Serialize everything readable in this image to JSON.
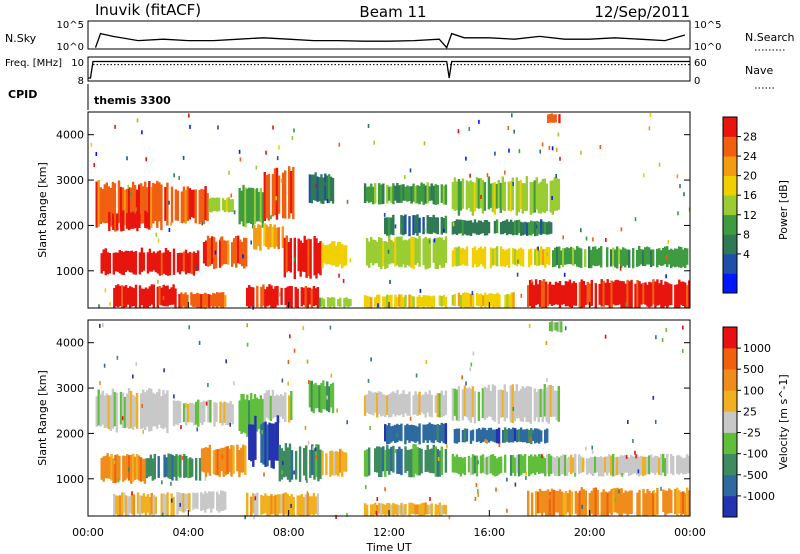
{
  "header": {
    "station": "Inuvik (fitACF)",
    "beam": "Beam 11",
    "date": "12/Sep/2011",
    "cpid_label": "CPID",
    "cpid_value": "themis 3300"
  },
  "colors": {
    "power": [
      "#0018ff",
      "#1f4fa8",
      "#2f7a55",
      "#3f9b3f",
      "#9acd32",
      "#f0d000",
      "#f39c12",
      "#f06010",
      "#e8140e"
    ],
    "velocity": [
      "#2433b0",
      "#2d6aa0",
      "#3e8b60",
      "#5fbf3a",
      "#c8c8c8",
      "#f0b020",
      "#f08c1c",
      "#f0600e",
      "#e81010"
    ],
    "frame": "#000000"
  },
  "chart_data": [
    {
      "type": "line",
      "name": "nsky-nsearch-panel",
      "ylabel_left": "N.Sky",
      "ylabel_right": "N.Search",
      "left_ticks": [
        "10^5",
        "10^0"
      ],
      "right_ticks": [
        "10^5",
        "10^0"
      ],
      "xlim": [
        0,
        24
      ],
      "series": [
        {
          "name": "N.Sky",
          "x": [
            0.3,
            0.5,
            1,
            2,
            3,
            4,
            5,
            6,
            7,
            8,
            9,
            10,
            11,
            12,
            13,
            14,
            14.3,
            14.5,
            15,
            16,
            17,
            18,
            19,
            20,
            21,
            22,
            23,
            23.8
          ],
          "y": [
            0.05,
            0.55,
            0.45,
            0.3,
            0.35,
            0.3,
            0.3,
            0.35,
            0.4,
            0.35,
            0.3,
            0.3,
            0.28,
            0.28,
            0.3,
            0.35,
            0.05,
            0.55,
            0.4,
            0.4,
            0.35,
            0.45,
            0.35,
            0.35,
            0.4,
            0.35,
            0.3,
            0.5
          ]
        }
      ]
    },
    {
      "type": "line",
      "name": "freq-nave-panel",
      "ylabel_left": "Freq. [MHz]",
      "ylabel_right": "Nave",
      "left_ticks": [
        "10",
        "8"
      ],
      "right_ticks": [
        "60",
        "0"
      ],
      "xlim": [
        0,
        24
      ],
      "series": [
        {
          "name": "Freq.",
          "x": [
            0,
            0.1,
            0.2,
            14.3,
            14.4,
            14.5,
            24
          ],
          "y": [
            8,
            8,
            10.2,
            10.2,
            8,
            10.2,
            10.2
          ]
        },
        {
          "name": "Nave",
          "x": [
            0.2,
            14.3,
            14.5,
            24
          ],
          "y": [
            41,
            41,
            41,
            41
          ]
        }
      ]
    },
    {
      "type": "heatmap",
      "name": "power-panel",
      "xlabel": "",
      "ylabel": "Slant Range [km]",
      "colorbar_label": "Power [dB]",
      "colorbar_ticks": [
        "28",
        "24",
        "20",
        "16",
        "12",
        "8",
        "4"
      ],
      "xlim": [
        0,
        24
      ],
      "ylim": [
        180,
        4500
      ],
      "yticks": [
        "1000",
        "2000",
        "3000",
        "4000"
      ],
      "blocks": [
        {
          "t": [
            0.3,
            3.2
          ],
          "r": [
            2000,
            2900
          ],
          "c": 7
        },
        {
          "t": [
            0.8,
            2.4
          ],
          "r": [
            1900,
            2300
          ],
          "c": 8
        },
        {
          "t": [
            3.3,
            4.8
          ],
          "r": [
            2100,
            2800
          ],
          "c": 7
        },
        {
          "t": [
            4.8,
            5.8
          ],
          "r": [
            2300,
            2600
          ],
          "c": 4
        },
        {
          "t": [
            6.0,
            7.0
          ],
          "r": [
            2000,
            2800
          ],
          "c": 3
        },
        {
          "t": [
            7.0,
            8.3
          ],
          "r": [
            2200,
            3200
          ],
          "c": 7
        },
        {
          "t": [
            8.8,
            9.8
          ],
          "r": [
            2500,
            3100
          ],
          "c": 2
        },
        {
          "t": [
            0.5,
            4.5
          ],
          "r": [
            950,
            1450
          ],
          "c": 8
        },
        {
          "t": [
            4.5,
            6.5
          ],
          "r": [
            1100,
            1700
          ],
          "c": 7
        },
        {
          "t": [
            6.5,
            7.8
          ],
          "r": [
            1500,
            2000
          ],
          "c": 6
        },
        {
          "t": [
            7.8,
            9.3
          ],
          "r": [
            900,
            1700
          ],
          "c": 8
        },
        {
          "t": [
            9.3,
            10.4
          ],
          "r": [
            1100,
            1600
          ],
          "c": 5
        },
        {
          "t": [
            1.0,
            3.6
          ],
          "r": [
            200,
            650
          ],
          "c": 8
        },
        {
          "t": [
            3.6,
            5.5
          ],
          "r": [
            200,
            500
          ],
          "c": 7
        },
        {
          "t": [
            6.3,
            9.2
          ],
          "r": [
            200,
            650
          ],
          "c": 8
        },
        {
          "t": [
            9.2,
            10.5
          ],
          "r": [
            200,
            400
          ],
          "c": 4
        },
        {
          "t": [
            11.0,
            14.3
          ],
          "r": [
            2500,
            2900
          ],
          "c": 3
        },
        {
          "t": [
            11.8,
            14.3
          ],
          "r": [
            1800,
            2200
          ],
          "c": 2
        },
        {
          "t": [
            11.0,
            14.3
          ],
          "r": [
            1100,
            1700
          ],
          "c": 4
        },
        {
          "t": [
            11.0,
            14.3
          ],
          "r": [
            200,
            450
          ],
          "c": 5
        },
        {
          "t": [
            14.5,
            18.8
          ],
          "r": [
            2300,
            3000
          ],
          "c": 4
        },
        {
          "t": [
            14.5,
            18.5
          ],
          "r": [
            1800,
            2100
          ],
          "c": 2
        },
        {
          "t": [
            14.5,
            18.5
          ],
          "r": [
            1100,
            1500
          ],
          "c": 5
        },
        {
          "t": [
            14.5,
            17.0
          ],
          "r": [
            200,
            500
          ],
          "c": 5
        },
        {
          "t": [
            18.5,
            24
          ],
          "r": [
            1100,
            1500
          ],
          "c": 3
        },
        {
          "t": [
            17.5,
            24
          ],
          "r": [
            200,
            750
          ],
          "c": 8
        },
        {
          "t": [
            18.3,
            18.9
          ],
          "r": [
            4250,
            4450
          ],
          "c": 7
        }
      ]
    },
    {
      "type": "heatmap",
      "name": "velocity-panel",
      "xlabel": "Time UT",
      "ylabel": "Slant Range [km]",
      "colorbar_label": "Velocity [m s^-1]",
      "colorbar_ticks": [
        "1000",
        "500",
        "100",
        "25",
        "-25",
        "-100",
        "-500",
        "-1000"
      ],
      "xlim": [
        0,
        24
      ],
      "ylim": [
        180,
        4500
      ],
      "xticks": [
        "00:00",
        "04:00",
        "08:00",
        "12:00",
        "16:00",
        "20:00",
        "00:00"
      ],
      "yticks": [
        "1000",
        "2000",
        "3000",
        "4000"
      ],
      "blocks": [
        {
          "t": [
            0.3,
            3.2
          ],
          "r": [
            2100,
            2900
          ],
          "c": 4
        },
        {
          "t": [
            3.3,
            5.8
          ],
          "r": [
            2200,
            2700
          ],
          "c": 4
        },
        {
          "t": [
            6.0,
            7.0
          ],
          "r": [
            2000,
            2800
          ],
          "c": 3
        },
        {
          "t": [
            7.0,
            8.3
          ],
          "r": [
            2300,
            2900
          ],
          "c": 4
        },
        {
          "t": [
            8.8,
            9.8
          ],
          "r": [
            2500,
            3100
          ],
          "c": 3
        },
        {
          "t": [
            0.5,
            2.3
          ],
          "r": [
            950,
            1500
          ],
          "c": 6
        },
        {
          "t": [
            2.3,
            4.5
          ],
          "r": [
            1000,
            1500
          ],
          "c": 2
        },
        {
          "t": [
            4.5,
            6.3
          ],
          "r": [
            1100,
            1700
          ],
          "c": 6
        },
        {
          "t": [
            6.3,
            7.6
          ],
          "r": [
            1300,
            2300
          ],
          "c": 0
        },
        {
          "t": [
            7.6,
            9.3
          ],
          "r": [
            1000,
            1700
          ],
          "c": 2
        },
        {
          "t": [
            9.3,
            10.4
          ],
          "r": [
            1100,
            1600
          ],
          "c": 5
        },
        {
          "t": [
            1.0,
            3.6
          ],
          "r": [
            200,
            650
          ],
          "c": 5
        },
        {
          "t": [
            3.6,
            5.5
          ],
          "r": [
            300,
            700
          ],
          "c": 4
        },
        {
          "t": [
            6.3,
            9.2
          ],
          "r": [
            200,
            650
          ],
          "c": 5
        },
        {
          "t": [
            11.0,
            14.3
          ],
          "r": [
            2400,
            2900
          ],
          "c": 4
        },
        {
          "t": [
            11.8,
            14.3
          ],
          "r": [
            1800,
            2200
          ],
          "c": 1
        },
        {
          "t": [
            11.0,
            14.3
          ],
          "r": [
            1100,
            1700
          ],
          "c": 2
        },
        {
          "t": [
            11.0,
            14.3
          ],
          "r": [
            200,
            450
          ],
          "c": 5
        },
        {
          "t": [
            14.5,
            18.8
          ],
          "r": [
            2300,
            3000
          ],
          "c": 4
        },
        {
          "t": [
            14.5,
            18.5
          ],
          "r": [
            1800,
            2100
          ],
          "c": 1
        },
        {
          "t": [
            14.5,
            18.5
          ],
          "r": [
            1100,
            1500
          ],
          "c": 3
        },
        {
          "t": [
            18.5,
            24
          ],
          "r": [
            1100,
            1500
          ],
          "c": 4
        },
        {
          "t": [
            17.5,
            24
          ],
          "r": [
            200,
            750
          ],
          "c": 6
        },
        {
          "t": [
            18.3,
            18.9
          ],
          "r": [
            4250,
            4450
          ],
          "c": 3
        }
      ]
    }
  ]
}
